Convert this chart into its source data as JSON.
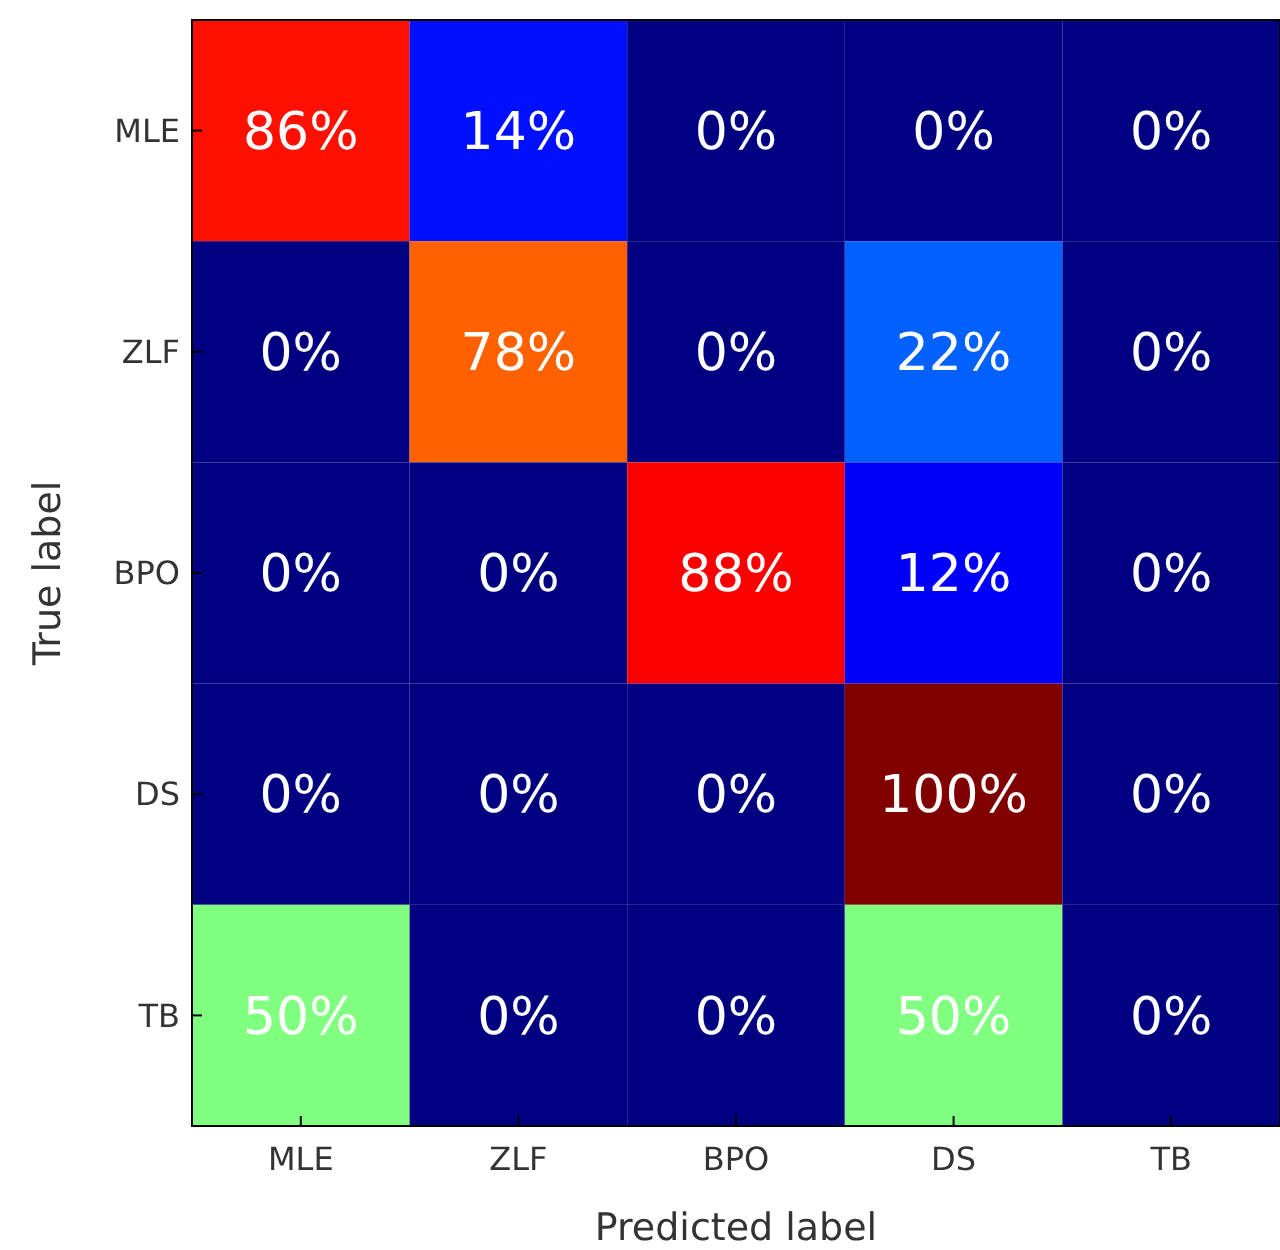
{
  "chart_data": {
    "type": "heatmap",
    "xlabel": "Predicted label",
    "ylabel": "True label",
    "categories": [
      "MLE",
      "ZLF",
      "BPO",
      "DS",
      "TB"
    ],
    "y_categories": [
      "MLE",
      "ZLF",
      "BPO",
      "DS",
      "TB"
    ],
    "cells": [
      [
        86,
        14,
        0,
        0,
        0
      ],
      [
        0,
        78,
        0,
        22,
        0
      ],
      [
        0,
        0,
        88,
        12,
        0
      ],
      [
        0,
        0,
        0,
        100,
        0
      ],
      [
        50,
        0,
        0,
        50,
        0
      ]
    ],
    "cell_labels": [
      [
        "86%",
        "14%",
        "0%",
        "0%",
        "0%"
      ],
      [
        "0%",
        "78%",
        "0%",
        "22%",
        "0%"
      ],
      [
        "0%",
        "0%",
        "88%",
        "12%",
        "0%"
      ],
      [
        "0%",
        "0%",
        "0%",
        "100%",
        "0%"
      ],
      [
        "50%",
        "0%",
        "0%",
        "50%",
        "0%"
      ]
    ]
  }
}
